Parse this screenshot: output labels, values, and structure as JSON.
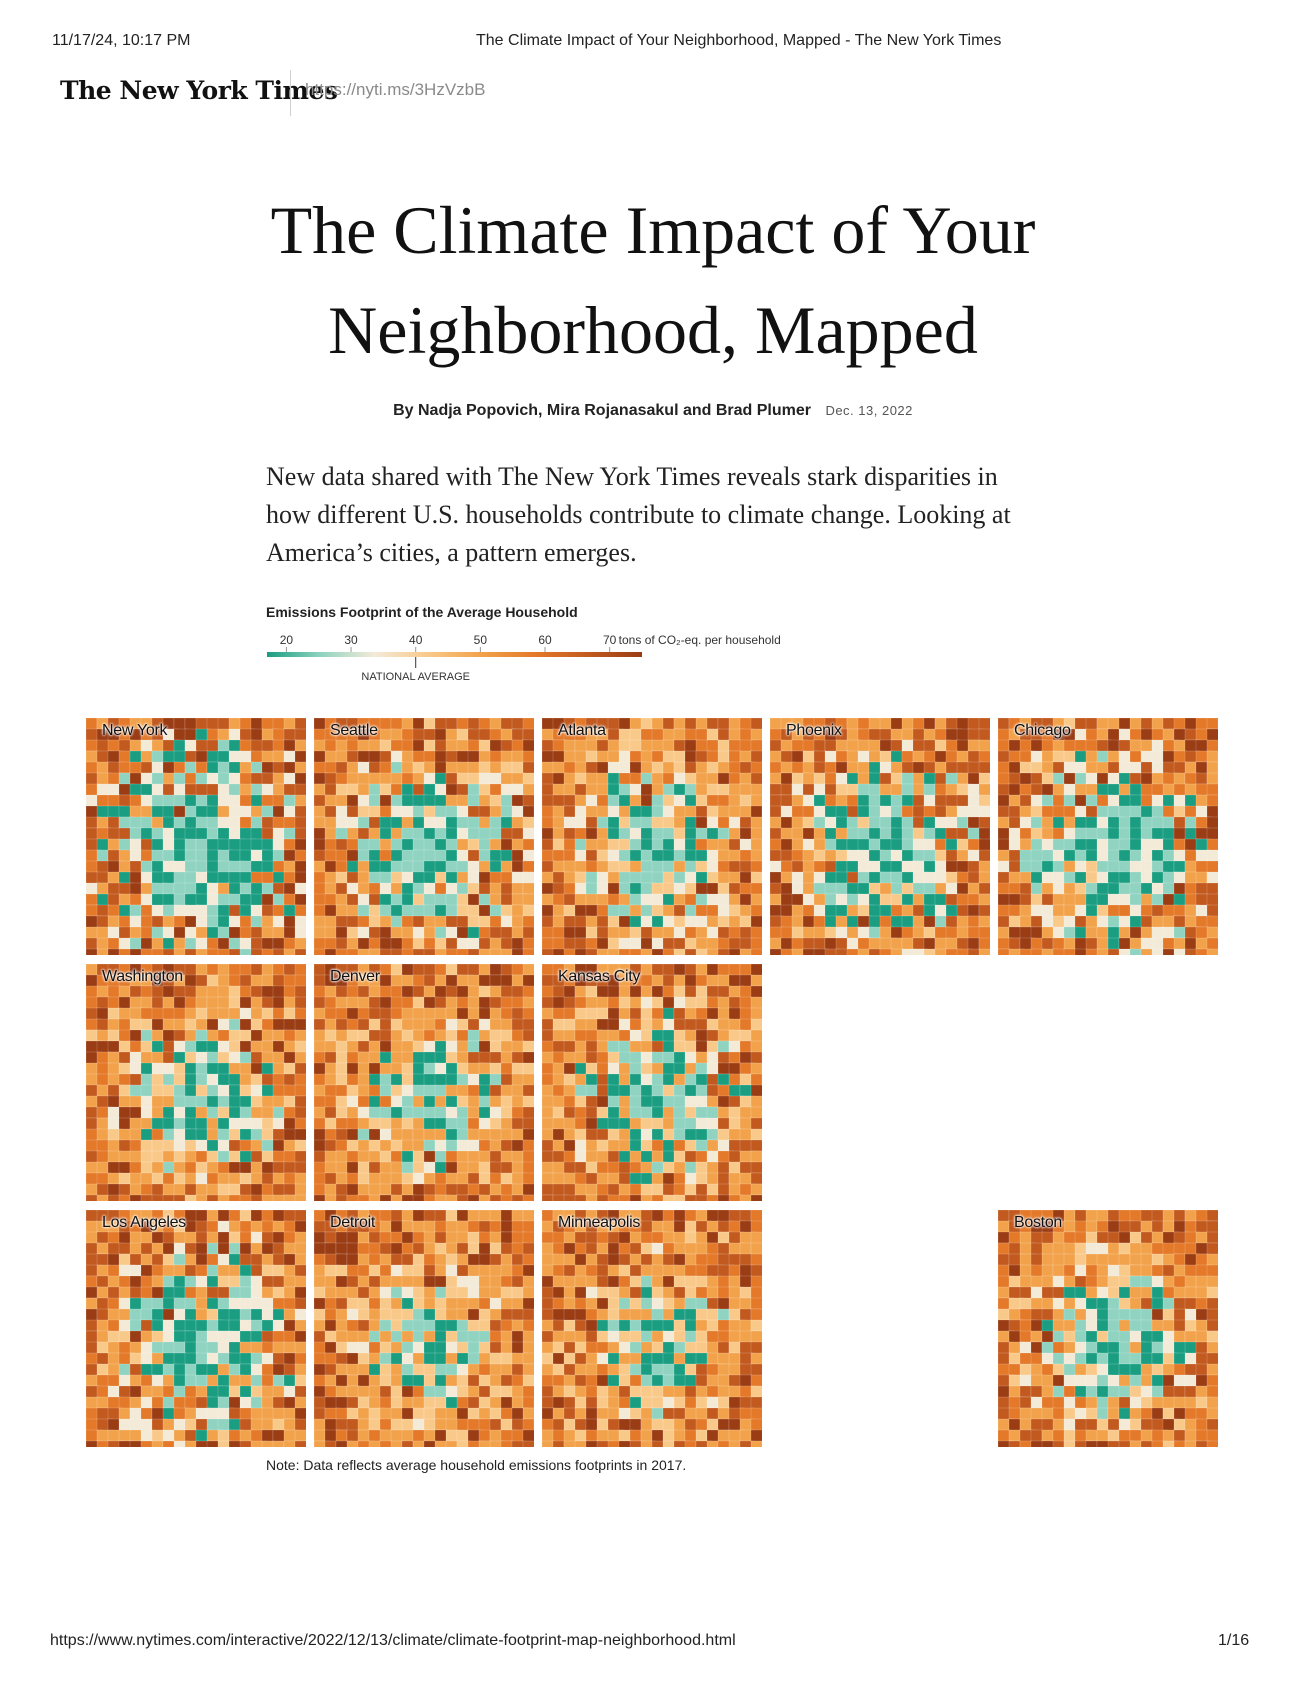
{
  "print_header": {
    "timestamp": "11/17/24, 10:17 PM",
    "page_title": "The Climate Impact of Your Neighborhood, Mapped - The New York Times"
  },
  "masthead": {
    "logo_text": "The New York Times",
    "short_link": "https://nyti.ms/3HzVzbB"
  },
  "article": {
    "headline_line1": "The Climate Impact of Your",
    "headline_line2": "Neighborhood, Mapped",
    "authors": "By Nadja Popovich, Mira Rojanasakul and Brad Plumer",
    "date": "Dec. 13, 2022",
    "dek": "New data shared with The New York Times reveals stark disparities in how different U.S. households contribute to climate change. Looking at America’s cities, a pattern emerges."
  },
  "legend": {
    "title": "Emissions Footprint of the Average Household",
    "ticks": [
      "20",
      "30",
      "40",
      "50",
      "60",
      "70"
    ],
    "unit_label": "tons of CO₂-eq. per household",
    "national_average_label": "NATIONAL AVERAGE",
    "national_average_value": 40,
    "range": [
      17,
      75
    ],
    "colors": [
      "#1a9d80",
      "#8fd3c0",
      "#f3ead8",
      "#f9c98a",
      "#f2a24a",
      "#e4792a",
      "#c25a1f",
      "#9a3c14"
    ]
  },
  "maps": [
    {
      "city": "New York",
      "row": 0,
      "col": 0,
      "seed": 11,
      "green_share": 0.3
    },
    {
      "city": "Seattle",
      "row": 0,
      "col": 1,
      "seed": 23,
      "green_share": 0.22
    },
    {
      "city": "Atlanta",
      "row": 0,
      "col": 2,
      "seed": 37,
      "green_share": 0.18
    },
    {
      "city": "Phoenix",
      "row": 0,
      "col": 3,
      "seed": 41,
      "green_share": 0.24
    },
    {
      "city": "Chicago",
      "row": 0,
      "col": 4,
      "seed": 53,
      "green_share": 0.26
    },
    {
      "city": "Washington",
      "row": 1,
      "col": 0,
      "seed": 61,
      "green_share": 0.16
    },
    {
      "city": "Denver",
      "row": 1,
      "col": 1,
      "seed": 73,
      "green_share": 0.15
    },
    {
      "city": "Kansas City",
      "row": 1,
      "col": 2,
      "seed": 89,
      "green_share": 0.18
    },
    {
      "city": "Los Angeles",
      "row": 2,
      "col": 0,
      "seed": 97,
      "green_share": 0.24
    },
    {
      "city": "Detroit",
      "row": 2,
      "col": 1,
      "seed": 103,
      "green_share": 0.12
    },
    {
      "city": "Minneapolis",
      "row": 2,
      "col": 2,
      "seed": 113,
      "green_share": 0.14
    },
    {
      "city": "Boston",
      "row": 2,
      "col": 4,
      "seed": 127,
      "green_share": 0.18
    }
  ],
  "note": "Note: Data reflects average household emissions footprints in 2017.",
  "footer": {
    "url": "https://www.nytimes.com/interactive/2022/12/13/climate/climate-footprint-map-neighborhood.html",
    "page": "1/16"
  }
}
